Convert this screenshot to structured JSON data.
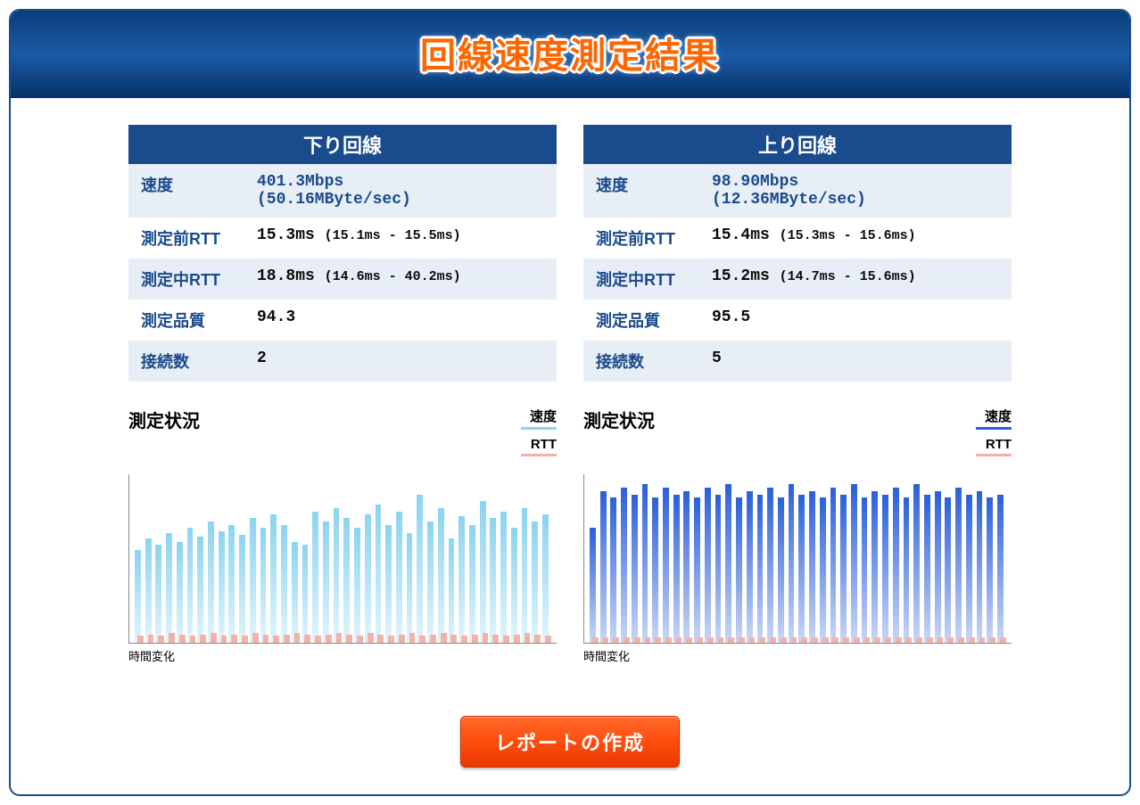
{
  "header": {
    "title": "回線速度測定結果"
  },
  "colors": {
    "header_bg": "#1a4b8c",
    "header_text": "#ffffff",
    "row_alt_bg": "#e8eef5",
    "label_color": "#1a4b8c",
    "value_color": "#0a0a0a",
    "speed_value_color": "#1a4b8c",
    "button_bg": "#ff4d0d",
    "button_text": "#ffffff",
    "title_color": "#ff6600"
  },
  "labels": {
    "speed": "速度",
    "rtt_before": "測定前RTT",
    "rtt_during": "測定中RTT",
    "quality": "測定品質",
    "connections": "接続数",
    "chart_title": "測定状況",
    "legend_speed": "速度",
    "legend_rtt": "RTT",
    "axis_x": "時間変化",
    "button": "レポートの作成"
  },
  "download": {
    "title": "下り回線",
    "speed_main": "401.3Mbps",
    "speed_sub": "(50.16MByte/sec)",
    "rtt_before_main": "15.3ms",
    "rtt_before_range": "(15.1ms - 15.5ms)",
    "rtt_during_main": "18.8ms",
    "rtt_during_range": "(14.6ms - 40.2ms)",
    "quality": "94.3",
    "connections": "2",
    "chart": {
      "type": "bar",
      "speed_color": "#8ad4f0",
      "rtt_color": "#f5b0a8",
      "legend_speed_color": "#8ad4f0",
      "legend_rtt_color": "#f5b0a8",
      "y_max": 100,
      "speed_values": [
        55,
        62,
        58,
        65,
        60,
        68,
        63,
        72,
        66,
        70,
        64,
        74,
        68,
        76,
        70,
        60,
        58,
        78,
        72,
        80,
        74,
        68,
        76,
        82,
        70,
        78,
        65,
        88,
        72,
        80,
        62,
        75,
        70,
        84,
        74,
        78,
        68,
        80,
        72,
        76
      ],
      "rtt_values": [
        4,
        5,
        4,
        6,
        5,
        4,
        5,
        6,
        4,
        5,
        4,
        6,
        5,
        4,
        5,
        6,
        5,
        4,
        5,
        6,
        5,
        4,
        6,
        5,
        4,
        5,
        6,
        4,
        5,
        6,
        5,
        4,
        5,
        6,
        5,
        4,
        5,
        6,
        5,
        4
      ]
    }
  },
  "upload": {
    "title": "上り回線",
    "speed_main": "98.90Mbps",
    "speed_sub": "(12.36MByte/sec)",
    "rtt_before_main": "15.4ms",
    "rtt_before_range": "(15.3ms - 15.6ms)",
    "rtt_during_main": "15.2ms",
    "rtt_during_range": "(14.7ms - 15.6ms)",
    "quality": "95.5",
    "connections": "5",
    "chart": {
      "type": "bar",
      "speed_color": "#2b5fd9",
      "rtt_color": "#f5b0a8",
      "legend_speed_color": "#2b5fd9",
      "legend_rtt_color": "#f5b0a8",
      "y_max": 100,
      "speed_values": [
        68,
        90,
        86,
        92,
        88,
        94,
        86,
        92,
        88,
        90,
        86,
        92,
        88,
        94,
        86,
        90,
        88,
        92,
        86,
        94,
        88,
        90,
        86,
        92,
        88,
        94,
        86,
        90,
        88,
        92,
        86,
        94,
        88,
        90,
        86,
        92,
        88,
        90,
        86,
        88
      ],
      "rtt_values": [
        3,
        3,
        3,
        3,
        3,
        3,
        3,
        3,
        3,
        3,
        3,
        3,
        3,
        3,
        3,
        3,
        3,
        3,
        3,
        3,
        3,
        3,
        3,
        3,
        3,
        3,
        3,
        3,
        3,
        3,
        3,
        3,
        3,
        3,
        3,
        3,
        3,
        3,
        3,
        3
      ]
    }
  }
}
